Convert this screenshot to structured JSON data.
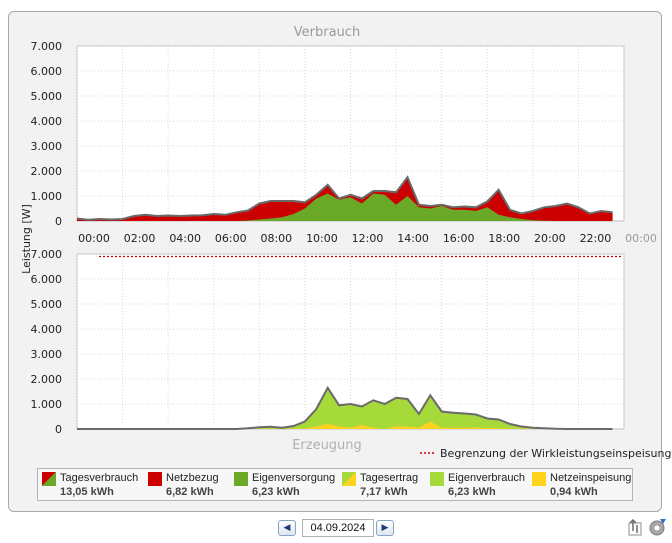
{
  "chart_data": {
    "type": "area",
    "top_chart": {
      "title": "Verbrauch",
      "ylabel": "Leistung [W]",
      "ylim": [
        0,
        7000
      ],
      "y_ticks": [
        "0",
        "1.000",
        "2.000",
        "3.000",
        "4.000",
        "5.000",
        "6.000",
        "7.000"
      ],
      "x_ticks": [
        "00:00",
        "02:00",
        "04:00",
        "06:00",
        "08:00",
        "10:00",
        "12:00",
        "14:00",
        "16:00",
        "18:00",
        "20:00",
        "22:00",
        "00:00"
      ],
      "x_hours": [
        0,
        0.5,
        1,
        1.5,
        2,
        2.5,
        3,
        3.5,
        4,
        4.5,
        5,
        5.5,
        6,
        6.5,
        7,
        7.5,
        8,
        8.5,
        9,
        9.5,
        10,
        10.5,
        11,
        11.5,
        12,
        12.5,
        13,
        13.5,
        14,
        14.5,
        15,
        15.5,
        16,
        16.5,
        17,
        17.5,
        18,
        18.5,
        19,
        19.5,
        20,
        20.5,
        21,
        21.5,
        22,
        22.5,
        23,
        23.5
      ],
      "series": [
        {
          "name": "Tagesverbrauch",
          "color": "#6a6a6a",
          "values": [
            100,
            50,
            80,
            60,
            80,
            200,
            250,
            200,
            220,
            200,
            220,
            230,
            280,
            250,
            350,
            420,
            700,
            800,
            800,
            800,
            750,
            1050,
            1450,
            900,
            1050,
            900,
            1200,
            1200,
            1150,
            1750,
            650,
            600,
            650,
            550,
            580,
            550,
            780,
            1250,
            450,
            300,
            400,
            550,
            600,
            700,
            550,
            300,
            400,
            350
          ]
        },
        {
          "name": "Eigenversorgung",
          "color": "#6aa828",
          "values": [
            0,
            0,
            0,
            0,
            0,
            0,
            0,
            0,
            0,
            0,
            0,
            0,
            0,
            0,
            0,
            20,
            60,
            100,
            150,
            280,
            500,
            900,
            1100,
            850,
            950,
            700,
            1100,
            1050,
            650,
            1000,
            550,
            500,
            600,
            450,
            450,
            400,
            550,
            250,
            150,
            80,
            30,
            10,
            0,
            0,
            0,
            0,
            0,
            0
          ]
        }
      ]
    },
    "bottom_chart": {
      "title": "Erzeugung",
      "ylim": [
        0,
        7000
      ],
      "y_ticks": [
        "0",
        "1.000",
        "2.000",
        "3.000",
        "4.000",
        "5.000",
        "6.000",
        "7.000"
      ],
      "limit_line": {
        "name": "Begrenzung der Wirkleistungseinspeisung",
        "value": 6900,
        "color": "#cc0000"
      },
      "series": [
        {
          "name": "Tagesertrag",
          "color": "#6a6a6a",
          "values": [
            0,
            0,
            0,
            0,
            0,
            0,
            0,
            0,
            0,
            0,
            0,
            0,
            0,
            0,
            0,
            30,
            70,
            90,
            50,
            120,
            300,
            800,
            1650,
            950,
            1000,
            900,
            1150,
            1000,
            1250,
            1200,
            600,
            1350,
            700,
            650,
            620,
            580,
            420,
            380,
            200,
            100,
            50,
            30,
            10,
            0,
            0,
            0,
            0,
            0
          ]
        },
        {
          "name": "Eigenverbrauch",
          "color": "#a6d93a",
          "values": [
            0,
            0,
            0,
            0,
            0,
            0,
            0,
            0,
            0,
            0,
            0,
            0,
            0,
            0,
            0,
            20,
            60,
            80,
            50,
            100,
            280,
            700,
            1450,
            850,
            950,
            750,
            1100,
            1050,
            1150,
            1100,
            550,
            1250,
            650,
            600,
            580,
            520,
            380,
            350,
            180,
            90,
            30,
            10,
            0,
            0,
            0,
            0,
            0,
            0
          ]
        },
        {
          "name": "Netzeinspeisung",
          "color": "#ffd21e",
          "values": [
            0,
            0,
            0,
            0,
            0,
            0,
            0,
            0,
            0,
            0,
            0,
            0,
            0,
            0,
            0,
            10,
            10,
            10,
            0,
            20,
            20,
            100,
            200,
            100,
            50,
            150,
            50,
            0,
            100,
            100,
            50,
            300,
            50,
            50,
            40,
            60,
            40,
            30,
            20,
            10,
            20,
            20,
            10,
            0,
            0,
            0,
            0,
            0
          ]
        }
      ]
    },
    "legend": [
      {
        "label": "Tagesverbrauch",
        "value": "13,05 kWh",
        "swatch": "split",
        "colors": [
          "#cc0000",
          "#6aa828"
        ]
      },
      {
        "label": "Netzbezug",
        "value": "6,82 kWh",
        "swatch": "solid",
        "colors": [
          "#cc0000"
        ]
      },
      {
        "label": "Eigenversorgung",
        "value": "6,23 kWh",
        "swatch": "solid",
        "colors": [
          "#6aa828"
        ]
      },
      {
        "label": "Tagesertrag",
        "value": "7,17 kWh",
        "swatch": "split",
        "colors": [
          "#a6d93a",
          "#ffd21e"
        ]
      },
      {
        "label": "Eigenverbrauch",
        "value": "6,23 kWh",
        "swatch": "solid",
        "colors": [
          "#a6d93a"
        ]
      },
      {
        "label": "Netzeinspeisung",
        "value": "0,94 kWh",
        "swatch": "solid",
        "colors": [
          "#ffd21e"
        ]
      }
    ],
    "legend_positions": [],
    "colors": {
      "netzbezug": "#cc0000",
      "eigenversorgung": "#6aa828",
      "eigenverbrauch": "#a6d93a",
      "netzeinspeisung": "#ffd21e",
      "outline": "#6a6a6a"
    }
  },
  "date_nav": {
    "date": "04.09.2024",
    "prev_icon": "left-arrow-icon",
    "next_icon": "right-arrow-icon"
  },
  "toolbar_icons": [
    "export-icon",
    "settings-gear-icon"
  ]
}
